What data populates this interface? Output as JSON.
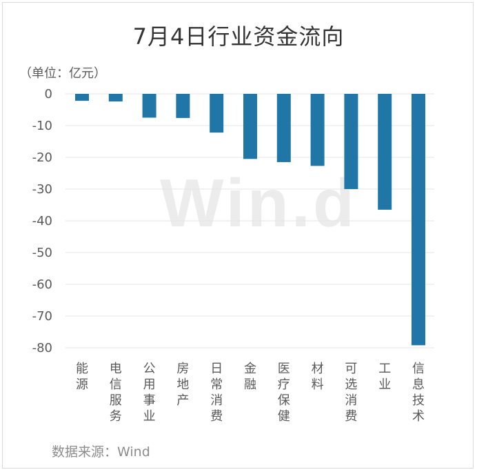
{
  "title": "7月4日行业资金流向",
  "unit_label": "（单位：亿元）",
  "source": "数据来源：Wind",
  "watermark": "Win.d",
  "colors": {
    "bar": "#2176a8",
    "grid": "#e5e5e5",
    "axis_text": "#595959"
  },
  "chart_data": {
    "type": "bar",
    "categories": [
      "能源",
      "电信服务",
      "公用事业",
      "房地产",
      "日常消费",
      "金融",
      "医疗保健",
      "材料",
      "可选消费",
      "工业",
      "信息技术"
    ],
    "values": [
      -2.2,
      -2.4,
      -7.5,
      -7.6,
      -12.2,
      -20.5,
      -21.5,
      -22.7,
      -30.0,
      -36.5,
      -79.2
    ],
    "ylim": [
      -80,
      0
    ],
    "yticks": [
      0,
      -10,
      -20,
      -30,
      -40,
      -50,
      -60,
      -70,
      -80
    ],
    "grid": true,
    "legend": "none"
  }
}
